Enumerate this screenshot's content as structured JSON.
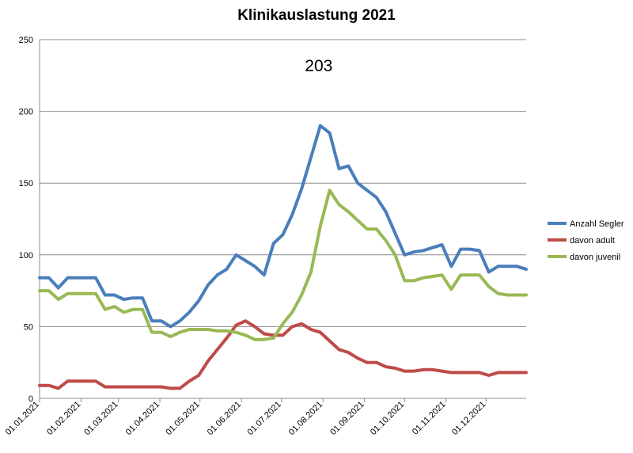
{
  "chart_data": {
    "type": "line",
    "title": "Klinikauslastung 2021",
    "xlabel": "",
    "ylabel": "",
    "ylim": [
      0,
      250
    ],
    "y_ticks": [
      0,
      50,
      100,
      150,
      200,
      250
    ],
    "x_ticks": [
      "01.01.2021",
      "01.02.2021",
      "01.03.2021",
      "01.04.2021",
      "01.05.2021",
      "01.06.2021",
      "01.07.2021",
      "01.08.2021",
      "01.09.2021",
      "01.10.2021",
      "01.11.2021",
      "01.12.2021"
    ],
    "grid": "horizontal",
    "legend_position": "right",
    "annotation": "203",
    "x": [
      "01.01.2021",
      "08.01.2021",
      "15.01.2021",
      "22.01.2021",
      "29.01.2021",
      "05.02.2021",
      "12.02.2021",
      "19.02.2021",
      "26.02.2021",
      "05.03.2021",
      "12.03.2021",
      "19.03.2021",
      "26.03.2021",
      "02.04.2021",
      "09.04.2021",
      "16.04.2021",
      "23.04.2021",
      "30.04.2021",
      "07.05.2021",
      "14.05.2021",
      "21.05.2021",
      "28.05.2021",
      "04.06.2021",
      "11.06.2021",
      "18.06.2021",
      "25.06.2021",
      "02.07.2021",
      "09.07.2021",
      "16.07.2021",
      "23.07.2021",
      "30.07.2021",
      "06.08.2021",
      "13.08.2021",
      "20.08.2021",
      "27.08.2021",
      "03.09.2021",
      "10.09.2021",
      "17.09.2021",
      "24.09.2021",
      "01.10.2021",
      "08.10.2021",
      "15.10.2021",
      "22.10.2021",
      "29.10.2021",
      "05.11.2021",
      "12.11.2021",
      "19.11.2021",
      "26.11.2021",
      "03.12.2021",
      "10.12.2021",
      "17.12.2021",
      "24.12.2021",
      "31.12.2021"
    ],
    "series": [
      {
        "name": "Anzahl Segler",
        "color": "#4a7ebb",
        "values": [
          84,
          84,
          77,
          84,
          84,
          84,
          84,
          72,
          72,
          69,
          70,
          70,
          54,
          54,
          50,
          54,
          60,
          68,
          79,
          86,
          90,
          100,
          96,
          92,
          86,
          108,
          114,
          128,
          146,
          168,
          190,
          185,
          160,
          162,
          150,
          145,
          140,
          130,
          115,
          100,
          102,
          103,
          105,
          107,
          92,
          104,
          104,
          103,
          88,
          92,
          92,
          92,
          90
        ]
      },
      {
        "name": "davon adult",
        "color": "#be4b48",
        "values": [
          9,
          9,
          7,
          12,
          12,
          12,
          12,
          8,
          8,
          8,
          8,
          8,
          8,
          8,
          7,
          7,
          12,
          16,
          26,
          34,
          42,
          51,
          54,
          50,
          45,
          44,
          44,
          50,
          52,
          48,
          46,
          40,
          34,
          32,
          28,
          25,
          25,
          22,
          21,
          19,
          19,
          20,
          20,
          19,
          18,
          18,
          18,
          18,
          16,
          18,
          18,
          18,
          18
        ]
      },
      {
        "name": "davon juvenil",
        "color": "#98b954",
        "values": [
          75,
          75,
          69,
          73,
          73,
          73,
          73,
          62,
          64,
          60,
          62,
          62,
          46,
          46,
          43,
          46,
          48,
          48,
          48,
          47,
          47,
          46,
          44,
          41,
          41,
          42,
          52,
          60,
          72,
          88,
          120,
          145,
          135,
          130,
          124,
          118,
          118,
          110,
          100,
          82,
          82,
          84,
          85,
          86,
          76,
          86,
          86,
          86,
          78,
          73,
          72,
          72,
          72
        ]
      }
    ]
  }
}
